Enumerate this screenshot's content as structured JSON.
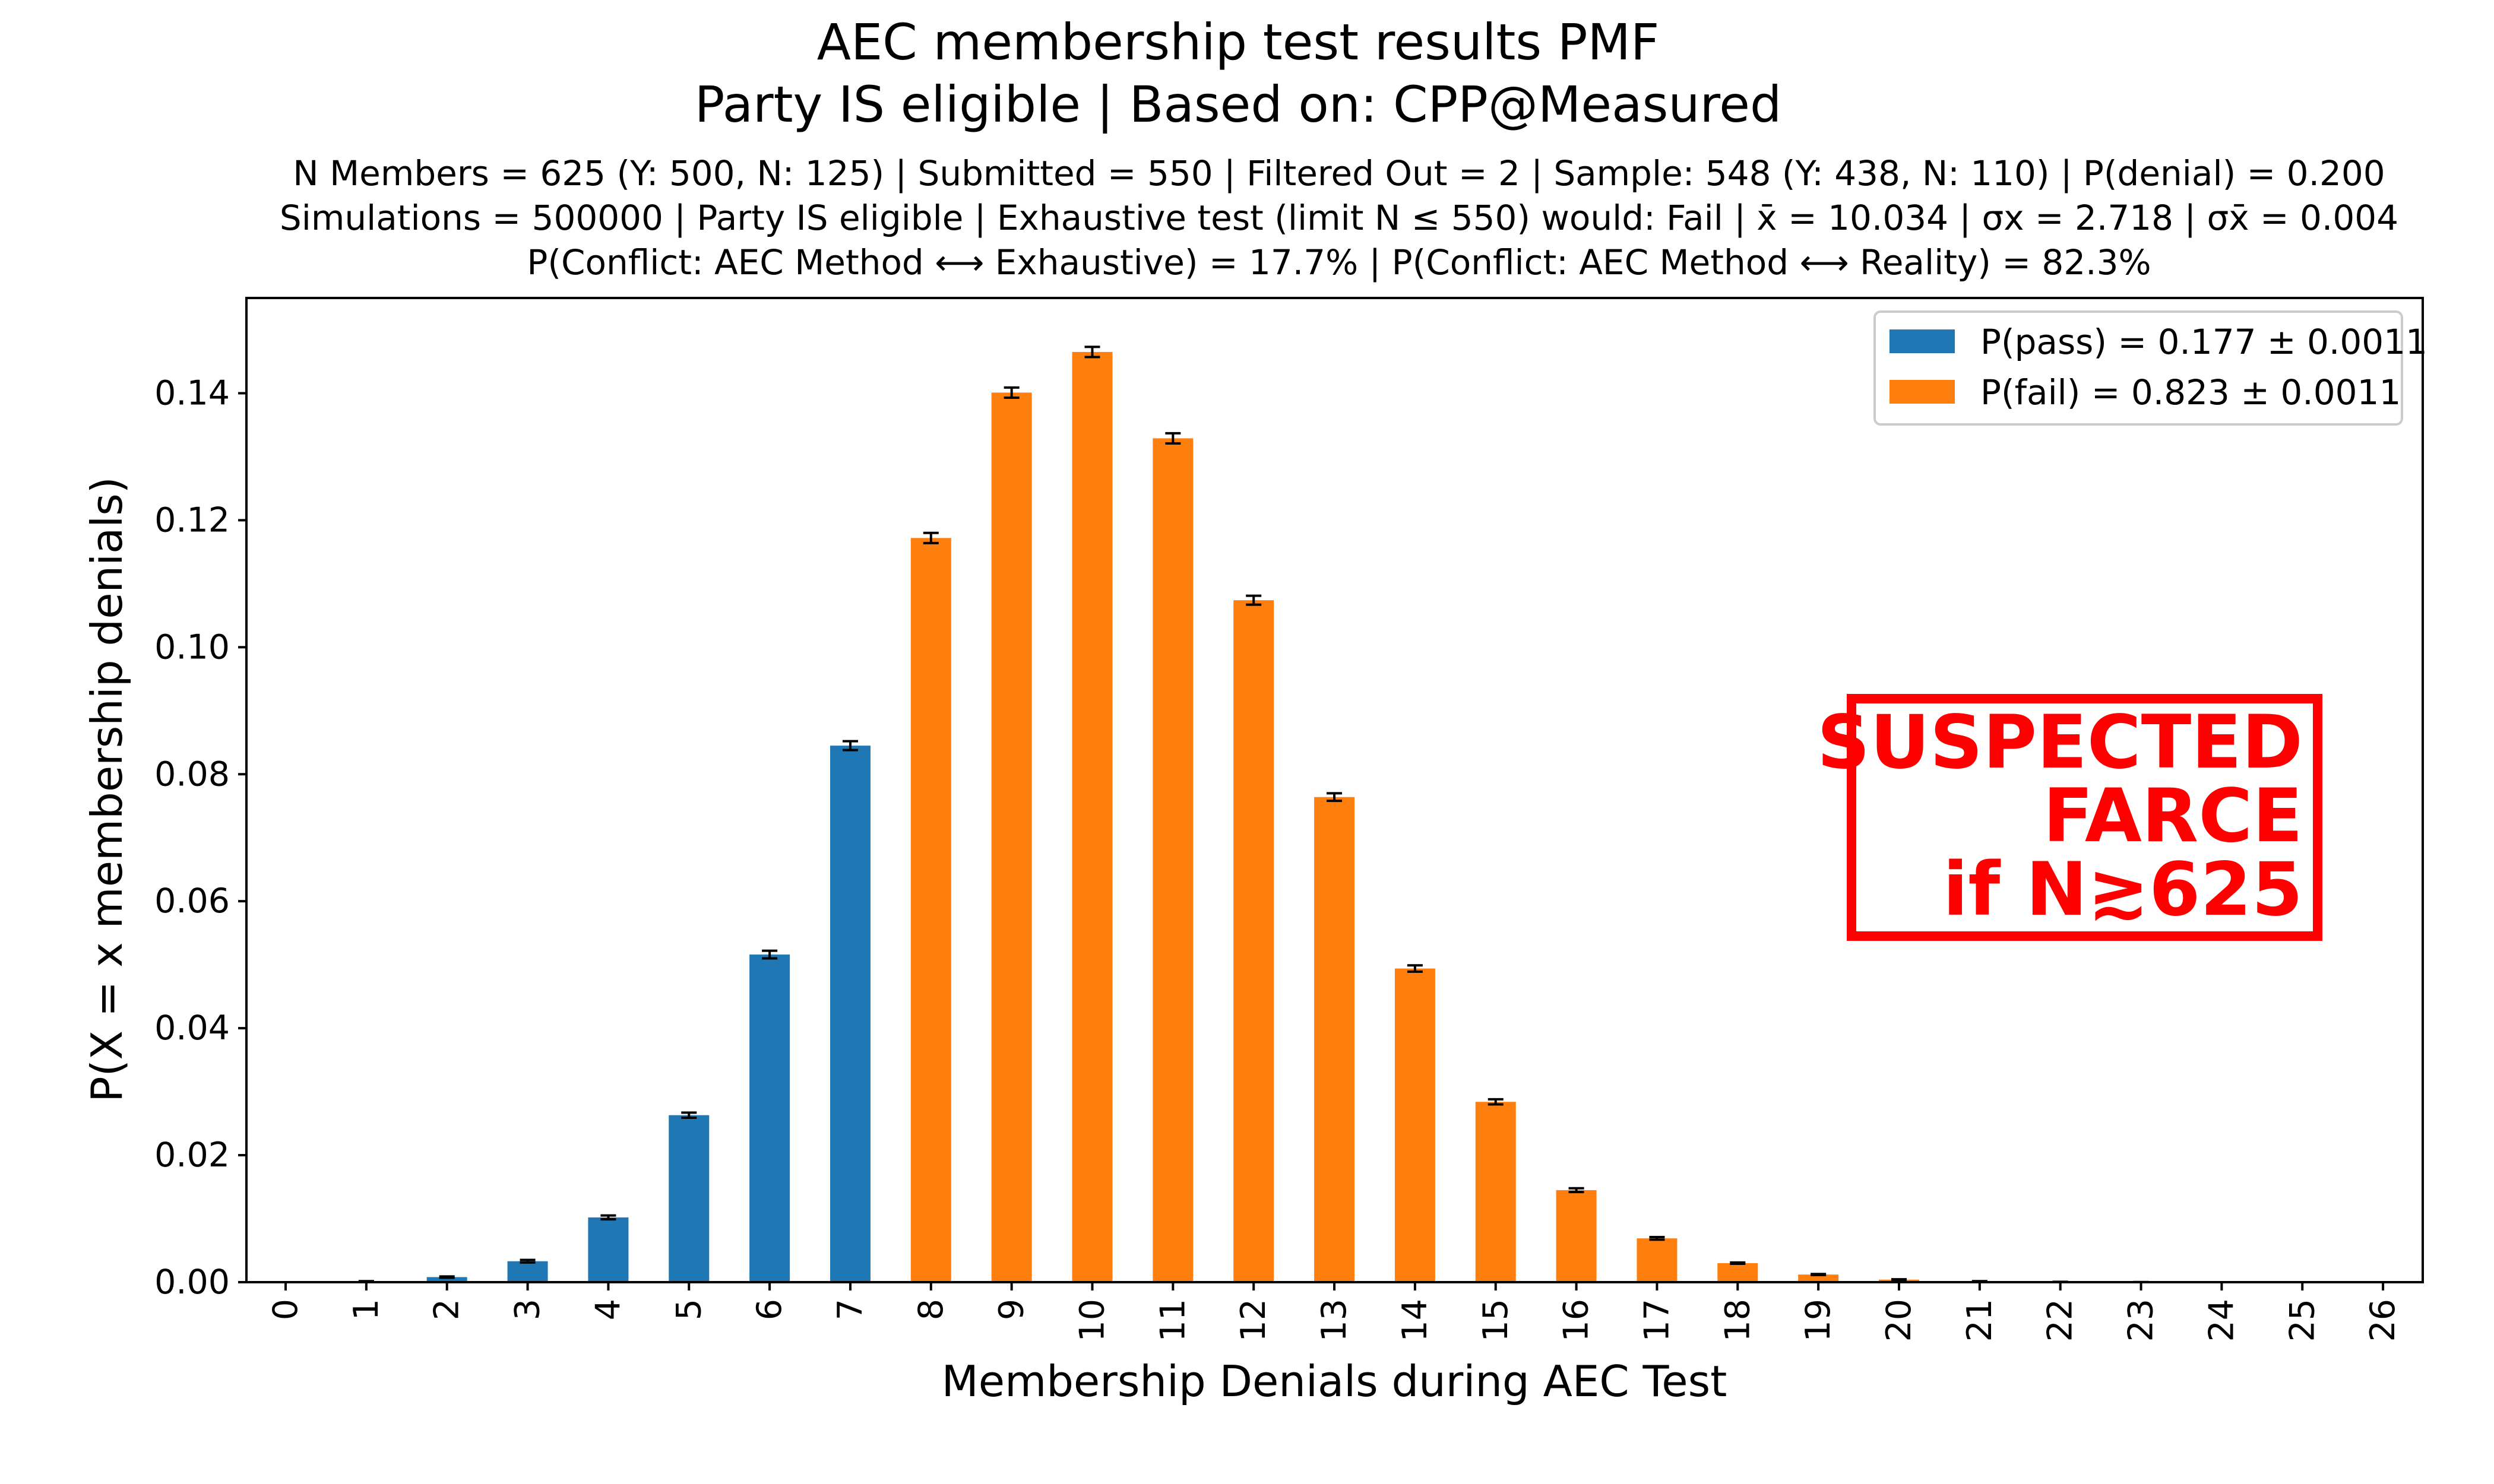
{
  "chart_data": {
    "type": "bar",
    "title": "AEC membership test results PMF",
    "title_line2": "Party IS eligible | Based on: CPP@Measured",
    "subtitle_lines": [
      "N Members = 625 (Y: 500, N: 125) | Submitted = 550 | Filtered Out = 2 | Sample: 548 (Y: 438, N: 110) | P(denial) = 0.200",
      "Simulations = 500000 | Party IS eligible | Exhaustive test (limit N ≤ 550) would: Fail | x̄ = 10.034 | σx = 2.718 | σx̄ = 0.004",
      "P(Conflict: AEC Method ⟷ Exhaustive) = 17.7% | P(Conflict: AEC Method ⟷ Reality) = 82.3%"
    ],
    "xlabel": "Membership Denials during AEC Test",
    "ylabel": "P(X = x membership denials)",
    "ylim": [
      0,
      0.155
    ],
    "yticks": [
      "0.00",
      "0.02",
      "0.04",
      "0.06",
      "0.08",
      "0.10",
      "0.12",
      "0.14"
    ],
    "categories": [
      "0",
      "1",
      "2",
      "3",
      "4",
      "5",
      "6",
      "7",
      "8",
      "9",
      "10",
      "11",
      "12",
      "13",
      "14",
      "15",
      "16",
      "17",
      "18",
      "19",
      "20",
      "21",
      "22",
      "23",
      "24",
      "25",
      "26"
    ],
    "values": [
      0.0,
      0.00013,
      0.0008,
      0.0033,
      0.0102,
      0.0263,
      0.0516,
      0.0845,
      0.1172,
      0.1401,
      0.1465,
      0.1329,
      0.1074,
      0.0764,
      0.0494,
      0.0284,
      0.0145,
      0.0069,
      0.003,
      0.0012,
      0.0004,
      0.00013,
      4e-05,
      1e-05,
      0.0,
      0.0,
      0.0
    ],
    "error": [
      0.0,
      3e-05,
      0.0001,
      0.0002,
      0.0003,
      0.0004,
      0.0006,
      0.0007,
      0.0008,
      0.0008,
      0.0008,
      0.0008,
      0.0007,
      0.0006,
      0.0005,
      0.0004,
      0.0003,
      0.0002,
      0.0001,
      8e-05,
      5e-05,
      3e-05,
      2e-05,
      1e-05,
      0.0,
      0.0,
      0.0
    ],
    "pass_max_category": 7,
    "series": [
      {
        "name": "P(pass) = 0.177 ± 0.0011",
        "color": "#1f77b4"
      },
      {
        "name": "P(fail) = 0.823 ± 0.0011",
        "color": "#ff7f0e"
      }
    ],
    "legend_position": "top-right",
    "grid": false,
    "annotation": {
      "line1": "SUSPECTED",
      "line2": "FARCE",
      "line3": "if N≳625",
      "color": "#ff0000"
    }
  }
}
